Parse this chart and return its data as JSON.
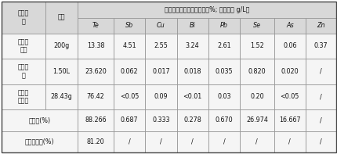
{
  "title": "各元素分析结果（固体单位%; 溶液单位 g/L）",
  "col_headers": [
    "Te",
    "Sb",
    "Cu",
    "Bi",
    "Pb",
    "Se",
    "As",
    "Zn"
  ],
  "header1": "物料名\n称",
  "header2": "数量",
  "rows": [
    {
      "name": "含碲苏\n打渣",
      "qty": "200g",
      "values": [
        "13.38",
        "4.51",
        "2.55",
        "3.24",
        "2.61",
        "1.52",
        "0.06",
        "0.37"
      ]
    },
    {
      "name": "碲浸出\n液",
      "qty": "1.50L",
      "values": [
        "23.620",
        "0.062",
        "0.017",
        "0.018",
        "0.035",
        "0.820",
        "0.020",
        "/"
      ]
    },
    {
      "name": "二氧化\n碲粗品",
      "qty": "28.43g",
      "values": [
        "76.42",
        "<0.05",
        "0.09",
        "<0.01",
        "0.03",
        "0.20",
        "<0.05",
        "/"
      ]
    },
    {
      "name": "浸出率(%)",
      "qty": null,
      "values": [
        "88.266",
        "0.687",
        "0.333",
        "0.278",
        "0.670",
        "26.974",
        "16.667",
        "/"
      ]
    },
    {
      "name": "碲总回收率(%)",
      "qty": null,
      "values": [
        "81.20",
        "/",
        "/",
        "/",
        "/",
        "/",
        "/",
        "/"
      ]
    }
  ],
  "header_bg": "#d8d8d8",
  "cell_bg": "#f5f5f5",
  "border_color": "#999999",
  "text_color": "#111111",
  "font_size": 5.8,
  "figsize": [
    4.31,
    1.97
  ],
  "dpi": 100
}
